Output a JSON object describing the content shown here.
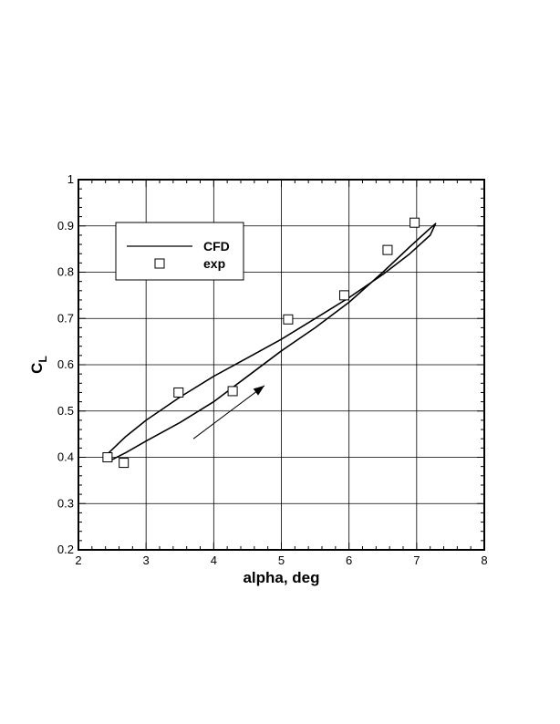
{
  "chart_data": {
    "type": "line",
    "xlabel": "alpha, deg",
    "ylabel_main": "C",
    "ylabel_sub": "L",
    "xlim": [
      2,
      8
    ],
    "ylim": [
      0.2,
      1.0
    ],
    "x_ticks": [
      "2",
      "3",
      "4",
      "5",
      "6",
      "7",
      "8"
    ],
    "y_ticks": [
      "0.2",
      "0.3",
      "0.4",
      "0.5",
      "0.6",
      "0.7",
      "0.8",
      "0.9",
      "1"
    ],
    "grid": true,
    "legend_position": "top-left",
    "series": [
      {
        "name": "CFD",
        "style": "line",
        "color": "#000000",
        "x": [
          2.5,
          2.45,
          2.7,
          3.0,
          3.5,
          4.0,
          4.5,
          5.0,
          5.5,
          6.0,
          6.5,
          6.9,
          7.2,
          7.28,
          7.2,
          6.9,
          6.5,
          6.0,
          5.5,
          5.0,
          4.5,
          4.0,
          3.5,
          3.0,
          2.7,
          2.5
        ],
        "y": [
          0.395,
          0.41,
          0.445,
          0.48,
          0.53,
          0.575,
          0.615,
          0.655,
          0.7,
          0.745,
          0.795,
          0.84,
          0.88,
          0.905,
          0.895,
          0.855,
          0.8,
          0.735,
          0.68,
          0.63,
          0.575,
          0.52,
          0.475,
          0.435,
          0.41,
          0.395
        ]
      },
      {
        "name": "exp",
        "style": "square-markers",
        "color": "#000000",
        "x": [
          2.43,
          2.67,
          3.48,
          4.28,
          5.1,
          5.93,
          6.57,
          6.97
        ],
        "y": [
          0.4,
          0.388,
          0.54,
          0.543,
          0.698,
          0.75,
          0.848,
          0.907
        ]
      }
    ],
    "annotation": {
      "type": "arrow",
      "from": [
        3.7,
        0.44
      ],
      "to": [
        4.75,
        0.555
      ]
    }
  }
}
